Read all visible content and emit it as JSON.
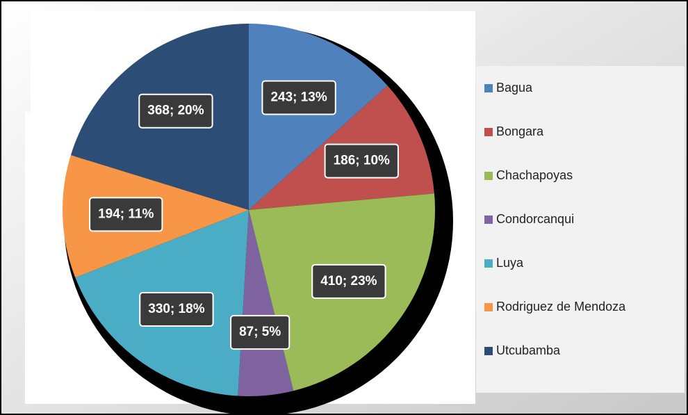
{
  "chart_data": {
    "type": "pie",
    "categories": [
      "Bagua",
      "Bongara",
      "Chachapoyas",
      "Condorcanqui",
      "Luya",
      "Rodriguez de Mendoza",
      "Utcubamba"
    ],
    "values": [
      243,
      186,
      410,
      87,
      330,
      194,
      368
    ],
    "value_labels": [
      "243; 13%",
      "186; 10%",
      "410; 23%",
      "87; 5%",
      "330; 18%",
      "194; 11%",
      "368; 20%"
    ],
    "colors": [
      "#4f81bd",
      "#c0504d",
      "#9bbb59",
      "#8064a2",
      "#4bacc6",
      "#f79646",
      "#2c4d75"
    ],
    "legend": "right"
  }
}
